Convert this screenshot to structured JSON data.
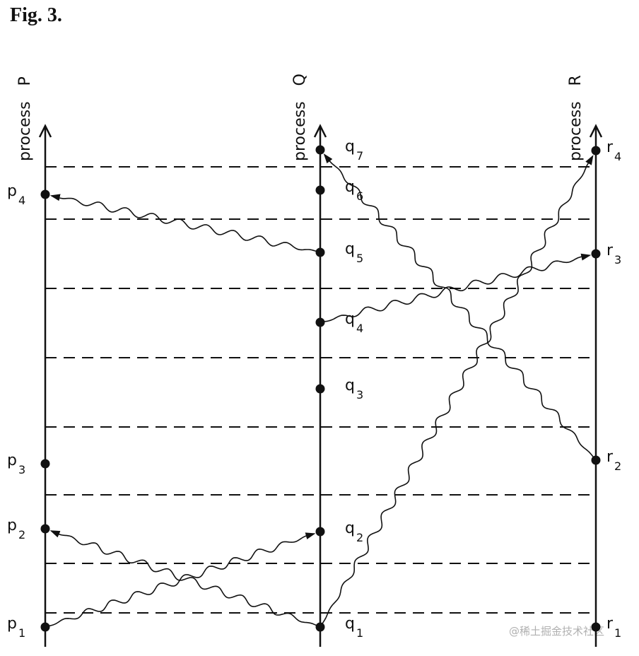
{
  "figure": {
    "title": "Fig. 3.",
    "watermark": "@稀土掘金技术社区"
  },
  "processes": [
    {
      "id": "P",
      "letter": "P",
      "word": "process"
    },
    {
      "id": "Q",
      "letter": "Q",
      "word": "process"
    },
    {
      "id": "R",
      "letter": "R",
      "word": "process"
    }
  ],
  "events": [
    {
      "id": "p1",
      "process": "P",
      "letter": "p",
      "index": "1"
    },
    {
      "id": "p2",
      "process": "P",
      "letter": "p",
      "index": "2"
    },
    {
      "id": "p3",
      "process": "P",
      "letter": "p",
      "index": "3"
    },
    {
      "id": "p4",
      "process": "P",
      "letter": "p",
      "index": "4"
    },
    {
      "id": "q1",
      "process": "Q",
      "letter": "q",
      "index": "1"
    },
    {
      "id": "q2",
      "process": "Q",
      "letter": "q",
      "index": "2"
    },
    {
      "id": "q3",
      "process": "Q",
      "letter": "q",
      "index": "3"
    },
    {
      "id": "q4",
      "process": "Q",
      "letter": "q",
      "index": "4"
    },
    {
      "id": "q5",
      "process": "Q",
      "letter": "q",
      "index": "5"
    },
    {
      "id": "q6",
      "process": "Q",
      "letter": "q",
      "index": "6"
    },
    {
      "id": "q7",
      "process": "Q",
      "letter": "q",
      "index": "7"
    },
    {
      "id": "r1",
      "process": "R",
      "letter": "r",
      "index": "1"
    },
    {
      "id": "r2",
      "process": "R",
      "letter": "r",
      "index": "2"
    },
    {
      "id": "r3",
      "process": "R",
      "letter": "r",
      "index": "3"
    },
    {
      "id": "r4",
      "process": "R",
      "letter": "r",
      "index": "4"
    }
  ],
  "messages": [
    {
      "from": "p1",
      "to": "q2"
    },
    {
      "from": "q1",
      "to": "p2"
    },
    {
      "from": "q1",
      "to": "r4"
    },
    {
      "from": "q4",
      "to": "r3"
    },
    {
      "from": "q5",
      "to": "p4"
    },
    {
      "from": "r2",
      "to": "q7"
    }
  ],
  "colors": {
    "ink": "#111111",
    "background": "#ffffff"
  }
}
